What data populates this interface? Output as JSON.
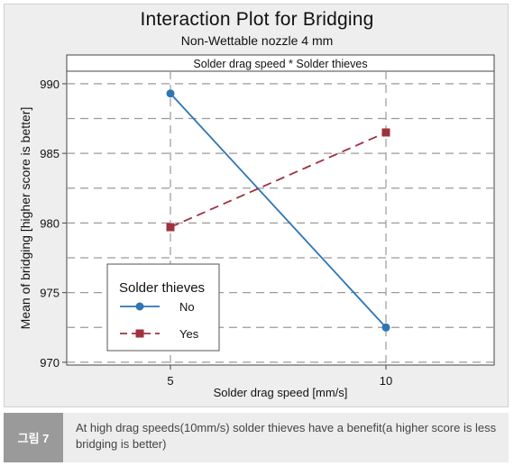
{
  "caption": {
    "tag": "그림 7",
    "text": "At high drag speeds(10mm/s) solder thieves have a benefit(a higher score is less bridging is better)"
  },
  "chart_data": {
    "type": "line",
    "title": "Interaction Plot for Bridging",
    "subtitle": "Non-Wettable nozzle 4 mm",
    "panel_label": "Solder drag speed * Solder thieves",
    "xlabel": "Solder drag speed [mm/s]",
    "ylabel": "Mean of bridging [higher score is better]",
    "categories": [
      "5",
      "10"
    ],
    "x_ticks": [
      "5",
      "10"
    ],
    "y_ticks": [
      970,
      975,
      980,
      985,
      990
    ],
    "ylim": [
      969.8,
      990.9
    ],
    "grid": true,
    "legend_title": "Solder thieves",
    "legend_position": "bottom-left",
    "series": [
      {
        "name": "No",
        "values": [
          989.3,
          972.5
        ],
        "color": "#2e75b6",
        "marker": "circle",
        "line_style": "solid"
      },
      {
        "name": "Yes",
        "values": [
          979.7,
          986.5
        ],
        "color": "#a0313f",
        "marker": "square",
        "line_style": "dashed"
      }
    ]
  }
}
